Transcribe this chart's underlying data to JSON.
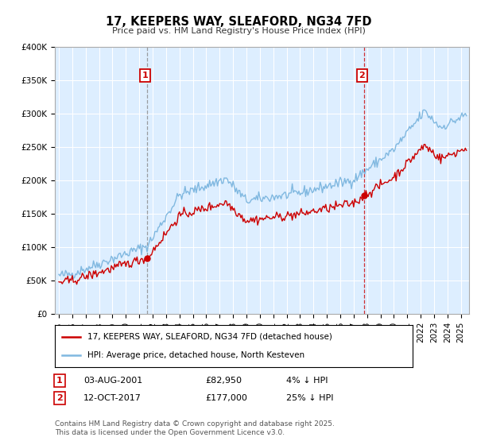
{
  "title": "17, KEEPERS WAY, SLEAFORD, NG34 7FD",
  "subtitle": "Price paid vs. HM Land Registry's House Price Index (HPI)",
  "ylabel_ticks": [
    "£0",
    "£50K",
    "£100K",
    "£150K",
    "£200K",
    "£250K",
    "£300K",
    "£350K",
    "£400K"
  ],
  "ylim": [
    0,
    400000
  ],
  "xlim_start": 1994.7,
  "xlim_end": 2025.6,
  "sale1_date": "03-AUG-2001",
  "sale1_price": 82950,
  "sale1_year": 2001.58,
  "sale1_label": "1",
  "sale1_hpi_pct": "4% ↓ HPI",
  "sale2_date": "12-OCT-2017",
  "sale2_price": 177000,
  "sale2_year": 2017.78,
  "sale2_label": "2",
  "sale2_hpi_pct": "25% ↓ HPI",
  "legend_line1": "17, KEEPERS WAY, SLEAFORD, NG34 7FD (detached house)",
  "legend_line2": "HPI: Average price, detached house, North Kesteven",
  "footer": "Contains HM Land Registry data © Crown copyright and database right 2025.\nThis data is licensed under the Open Government Licence v3.0.",
  "line_color_red": "#cc0000",
  "line_color_blue": "#80b8e0",
  "background_color": "#ddeeff",
  "grid_color": "#ffffff",
  "annotation_color": "#cc0000",
  "vline1_color": "#888888",
  "vline2_color": "#cc0000",
  "title_fontsize": 10.5,
  "subtitle_fontsize": 8,
  "tick_fontsize": 7.5,
  "legend_fontsize": 7.5,
  "footer_fontsize": 6.5
}
